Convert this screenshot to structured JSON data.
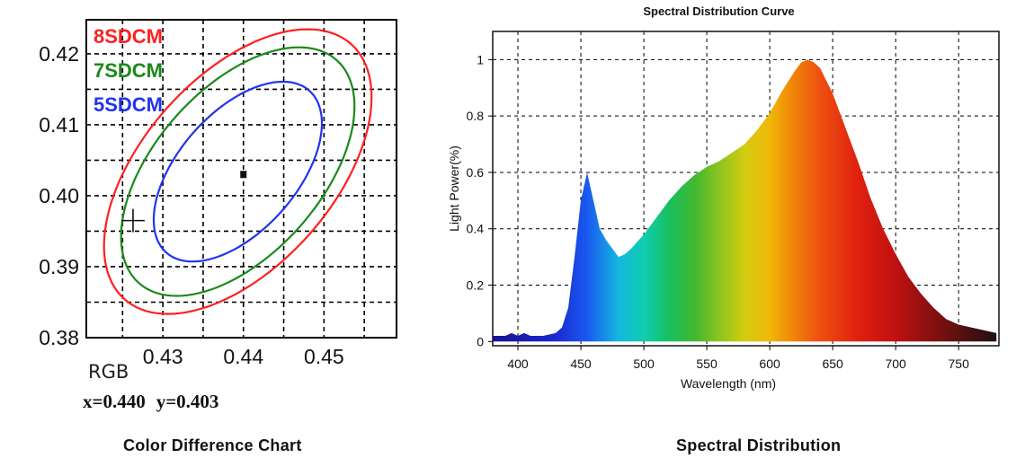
{
  "chart_data": [
    {
      "type": "scatter",
      "subtype": "color-difference-ellipses",
      "title": "Color Difference Chart",
      "xlim": [
        0.4205,
        0.459
      ],
      "ylim": [
        0.38,
        0.4248
      ],
      "x_ticks": [
        0.43,
        0.44,
        0.45
      ],
      "x_tick_labels": [
        "0.43",
        "0.44",
        "0.45"
      ],
      "y_ticks": [
        0.38,
        0.39,
        0.4,
        0.41,
        0.42
      ],
      "y_tick_labels": [
        "0.38",
        "0.39",
        "0.40",
        "0.41",
        "0.42"
      ],
      "grid": true,
      "ellipses": [
        {
          "name": "8SDCM",
          "color": "#ff2020",
          "center": [
            0.4393,
            0.4034
          ],
          "semi_major": 0.0229,
          "semi_minor": 0.0124,
          "angle_deg": 55
        },
        {
          "name": "7SDCM",
          "color": "#1a8a1a",
          "center": [
            0.4393,
            0.4034
          ],
          "semi_major": 0.02,
          "semi_minor": 0.0108,
          "angle_deg": 55
        },
        {
          "name": "5SDCM",
          "color": "#2233ee",
          "center": [
            0.4393,
            0.4034
          ],
          "semi_major": 0.0145,
          "semi_minor": 0.0077,
          "angle_deg": 55
        }
      ],
      "measured_point": {
        "x": 0.44,
        "y": 0.403
      },
      "reference_cross": {
        "x": 0.4263,
        "y": 0.3965
      },
      "rgb_label": "RGB",
      "readout": {
        "x_text": "x=0.440",
        "y_text": "y=0.403"
      }
    },
    {
      "type": "area",
      "title": "Spectral Distribution Curve",
      "xlabel": "Wavelength  (nm)",
      "ylabel": "Light Power(%)",
      "xlim": [
        380,
        782
      ],
      "ylim": [
        -0.015,
        1.1
      ],
      "x_ticks": [
        400,
        450,
        500,
        550,
        600,
        650,
        700,
        750
      ],
      "y_ticks": [
        0,
        0.2,
        0.4,
        0.6,
        0.8,
        1
      ],
      "y_tick_labels": [
        "0",
        "0.2",
        "0.4",
        "0.6",
        "0.8",
        "1"
      ],
      "grid": true,
      "fill": "visible-spectrum gradient",
      "x": [
        380,
        390,
        395,
        400,
        405,
        410,
        420,
        430,
        435,
        440,
        445,
        450,
        455,
        460,
        465,
        470,
        475,
        480,
        485,
        490,
        500,
        510,
        520,
        530,
        540,
        550,
        560,
        570,
        580,
        590,
        600,
        610,
        620,
        625,
        630,
        635,
        640,
        650,
        660,
        670,
        680,
        690,
        700,
        710,
        720,
        730,
        740,
        750,
        760,
        770,
        780
      ],
      "y": [
        0.02,
        0.02,
        0.03,
        0.02,
        0.03,
        0.02,
        0.02,
        0.03,
        0.05,
        0.12,
        0.3,
        0.5,
        0.6,
        0.5,
        0.4,
        0.36,
        0.33,
        0.3,
        0.31,
        0.33,
        0.38,
        0.44,
        0.5,
        0.55,
        0.59,
        0.62,
        0.64,
        0.67,
        0.7,
        0.75,
        0.81,
        0.89,
        0.96,
        0.99,
        1.0,
        0.99,
        0.97,
        0.88,
        0.76,
        0.64,
        0.51,
        0.4,
        0.31,
        0.23,
        0.17,
        0.12,
        0.08,
        0.06,
        0.05,
        0.04,
        0.03
      ]
    }
  ],
  "captions": {
    "left": "Color Difference Chart",
    "right": "Spectral Distribution"
  }
}
